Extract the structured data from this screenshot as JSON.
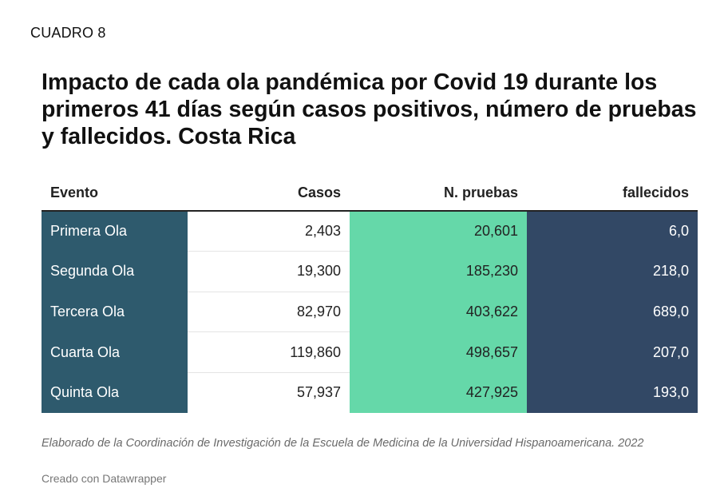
{
  "header": {
    "label": "CUADRO 8",
    "title": "Impacto de cada ola pandémica por Covid 19 durante los primeros 41 días según casos positivos, número de pruebas y fallecidos. Costa Rica"
  },
  "table": {
    "columns": [
      "Evento",
      "Casos",
      "N. pruebas",
      "fallecidos"
    ],
    "rows": [
      [
        "Primera Ola",
        "2,403",
        "20,601",
        "6,0"
      ],
      [
        "Segunda Ola",
        "19,300",
        "185,230",
        "218,0"
      ],
      [
        "Tercera Ola",
        "82,970",
        "403,622",
        "689,0"
      ],
      [
        "Cuarta Ola",
        "119,860",
        "498,657",
        "207,0"
      ],
      [
        "Quinta Ola",
        "57,937",
        "427,925",
        "193,0"
      ]
    ],
    "colors": {
      "evento": "#2e5a6d",
      "casos": "#ffffff",
      "pruebas": "#65d8a9",
      "fallecidos": "#324865"
    }
  },
  "footer": {
    "note": "Elaborado de la Coordinación de Investigación de la Escuela de Medicina de la Universidad Hispanoamericana. 2022",
    "credit": "Creado con Datawrapper"
  }
}
